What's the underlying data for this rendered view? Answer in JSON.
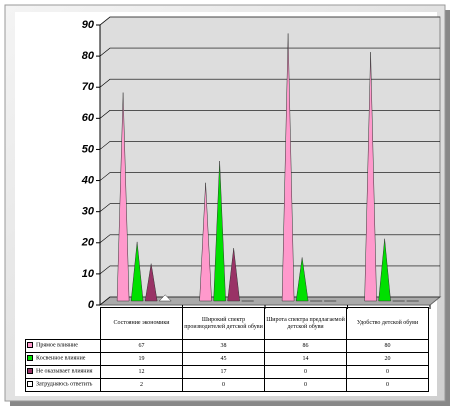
{
  "chart_data": {
    "type": "cone",
    "categories": [
      "Состояние экономики",
      "Широкий спектр производителей детской обуви",
      "Широта спектра предлагаемой детской обуви",
      "Удобство детской обуви"
    ],
    "series": [
      {
        "name": "Прямое влияние",
        "color": "#ff99cc",
        "values": [
          67,
          38,
          86,
          80
        ]
      },
      {
        "name": "Косвенное влияние",
        "color": "#00e000",
        "values": [
          19,
          45,
          14,
          20
        ]
      },
      {
        "name": "Не оказывает влияния",
        "color": "#993366",
        "values": [
          12,
          17,
          0,
          0
        ]
      },
      {
        "name": "Затрудняюсь ответить",
        "color": "#ffffff",
        "values": [
          2,
          0,
          0,
          0
        ]
      }
    ],
    "ylim": [
      0,
      90
    ],
    "yticks": [
      0,
      10,
      20,
      30,
      40,
      50,
      60,
      70,
      80,
      90
    ],
    "grid": true
  }
}
